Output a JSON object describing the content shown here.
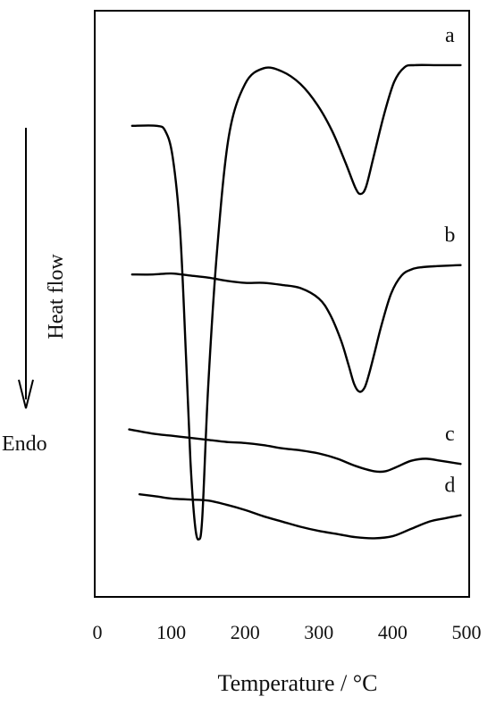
{
  "chart_data": {
    "type": "line",
    "xlabel": "Temperature / °C",
    "xlim": [
      0,
      500
    ],
    "x_ticks": [
      0,
      100,
      200,
      300,
      400,
      500
    ],
    "annotations": {
      "endo_label": "Endo",
      "heat_flow_label": "Heat flow"
    },
    "series": [
      {
        "name": "a",
        "x": [
          47,
          80,
          92,
          102,
          112,
          120,
          126,
          132,
          137,
          142,
          150,
          162,
          178,
          200,
          225,
          250,
          275,
          298,
          318,
          336,
          350,
          357,
          364,
          374,
          388,
          402,
          416,
          430,
          460,
          492
        ],
        "y": [
          5.0,
          5.0,
          4.95,
          4.7,
          4.0,
          2.8,
          1.8,
          1.2,
          1.05,
          1.25,
          2.5,
          3.8,
          4.9,
          5.4,
          5.55,
          5.52,
          5.4,
          5.2,
          4.95,
          4.65,
          4.4,
          4.35,
          4.42,
          4.7,
          5.1,
          5.42,
          5.56,
          5.58,
          5.58,
          5.58
        ]
      },
      {
        "name": "b",
        "x": [
          47,
          75,
          100,
          125,
          150,
          175,
          200,
          225,
          250,
          275,
          300,
          315,
          330,
          340,
          348,
          355,
          362,
          368,
          375,
          385,
          398,
          412,
          426,
          440,
          460,
          492
        ],
        "y": [
          3.58,
          3.58,
          3.59,
          3.57,
          3.55,
          3.52,
          3.5,
          3.5,
          3.48,
          3.45,
          3.35,
          3.2,
          2.95,
          2.72,
          2.53,
          2.46,
          2.5,
          2.63,
          2.82,
          3.1,
          3.4,
          3.57,
          3.63,
          3.65,
          3.66,
          3.67
        ]
      },
      {
        "name": "c",
        "x": [
          43,
          75,
          100,
          125,
          150,
          175,
          200,
          225,
          250,
          275,
          300,
          325,
          350,
          375,
          390,
          405,
          425,
          445,
          465,
          492
        ],
        "y": [
          2.1,
          2.06,
          2.04,
          2.02,
          2.0,
          1.98,
          1.97,
          1.95,
          1.92,
          1.9,
          1.87,
          1.82,
          1.75,
          1.7,
          1.7,
          1.74,
          1.8,
          1.82,
          1.8,
          1.77
        ]
      },
      {
        "name": "d",
        "x": [
          57,
          80,
          100,
          125,
          150,
          175,
          200,
          225,
          250,
          275,
          300,
          325,
          350,
          375,
          400,
          425,
          450,
          470,
          492
        ],
        "y": [
          1.48,
          1.46,
          1.44,
          1.43,
          1.42,
          1.38,
          1.33,
          1.27,
          1.22,
          1.17,
          1.13,
          1.1,
          1.07,
          1.06,
          1.08,
          1.15,
          1.22,
          1.25,
          1.28
        ]
      }
    ]
  }
}
